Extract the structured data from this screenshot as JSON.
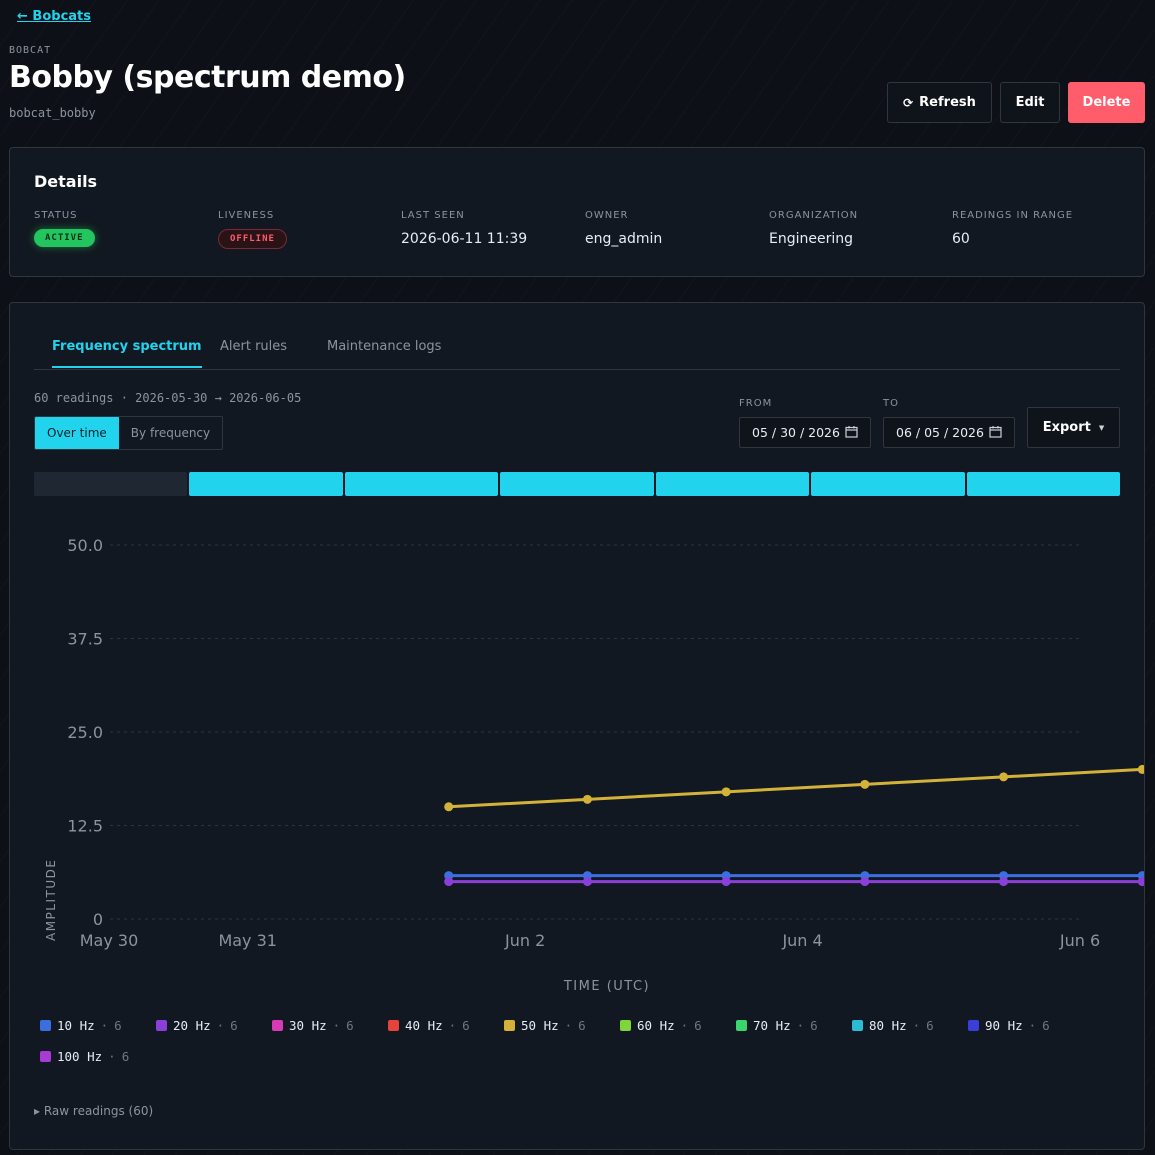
{
  "nav": {
    "back_label": "← Bobcats"
  },
  "header": {
    "eyebrow": "BOBCAT",
    "title": "Bobby (spectrum demo)",
    "slug": "bobcat_bobby"
  },
  "actions": {
    "refresh": "Refresh",
    "edit": "Edit",
    "delete": "Delete"
  },
  "details": {
    "heading": "Details",
    "status": {
      "label": "STATUS",
      "value": "ACTIVE"
    },
    "liveness": {
      "label": "LIVENESS",
      "value": "OFFLINE"
    },
    "last_seen": {
      "label": "LAST SEEN",
      "value": "2026-06-11 11:39"
    },
    "owner": {
      "label": "OWNER",
      "value": "eng_admin"
    },
    "organization": {
      "label": "ORGANIZATION",
      "value": "Engineering"
    },
    "readings": {
      "label": "READINGS IN RANGE",
      "value": "60"
    }
  },
  "tabs": [
    "Frequency spectrum",
    "Alert rules",
    "Maintenance logs"
  ],
  "summary": "60 readings · 2026-05-30 → 2026-06-05",
  "view_toggle": {
    "over_time": "Over time",
    "by_frequency": "By frequency"
  },
  "range": {
    "from_label": "FROM",
    "from_value": "05 / 30 / 2026",
    "to_label": "TO",
    "to_value": "06 / 05 / 2026"
  },
  "export_label": "Export",
  "timeline_segments": [
    false,
    true,
    true,
    true,
    true,
    true,
    true
  ],
  "colors": {
    "accent": "#22d3ee",
    "danger": "#ff5c6c",
    "success": "#22c55e"
  },
  "chart_data": {
    "type": "line",
    "xlabel": "TIME (UTC)",
    "ylabel": "AMPLITUDE",
    "ylim": [
      0,
      50
    ],
    "yticks": [
      "50.0",
      "37.5",
      "25.0",
      "12.5",
      "0"
    ],
    "xticks": [
      "May 30",
      "May 31",
      "Jun 2",
      "Jun 4",
      "Jun 6"
    ],
    "xlim": [
      "2026-05-30",
      "2026-06-06"
    ],
    "x": [
      "2026-05-31",
      "2026-06-01",
      "2026-06-02",
      "2026-06-03",
      "2026-06-04",
      "2026-06-05"
    ],
    "grid": true,
    "series": [
      {
        "name": "10 Hz",
        "color": "#3b6fe0",
        "values": [
          5.8,
          5.8,
          5.8,
          5.8,
          5.8,
          5.8
        ]
      },
      {
        "name": "20 Hz",
        "color": "#8b3fd9",
        "values": [
          5.0,
          5.0,
          5.0,
          5.0,
          5.0,
          5.0
        ]
      },
      {
        "name": "50 Hz",
        "color": "#d4b23a",
        "values": [
          15.0,
          16.0,
          17.0,
          18.0,
          19.0,
          20.0
        ]
      }
    ]
  },
  "legend": [
    {
      "name": "10 Hz",
      "count": "6",
      "color": "#3b6fe0"
    },
    {
      "name": "20 Hz",
      "count": "6",
      "color": "#8b3fd9"
    },
    {
      "name": "30 Hz",
      "count": "6",
      "color": "#d63bb5"
    },
    {
      "name": "40 Hz",
      "count": "6",
      "color": "#e5443a"
    },
    {
      "name": "50 Hz",
      "count": "6",
      "color": "#d4b23a"
    },
    {
      "name": "60 Hz",
      "count": "6",
      "color": "#7ed63b"
    },
    {
      "name": "70 Hz",
      "count": "6",
      "color": "#3bd66b"
    },
    {
      "name": "80 Hz",
      "count": "6",
      "color": "#2bbcd4"
    },
    {
      "name": "90 Hz",
      "count": "6",
      "color": "#3b3fd9"
    },
    {
      "name": "100 Hz",
      "count": "6",
      "color": "#a83bd6"
    }
  ],
  "raw_label": "▸ Raw readings (60)"
}
